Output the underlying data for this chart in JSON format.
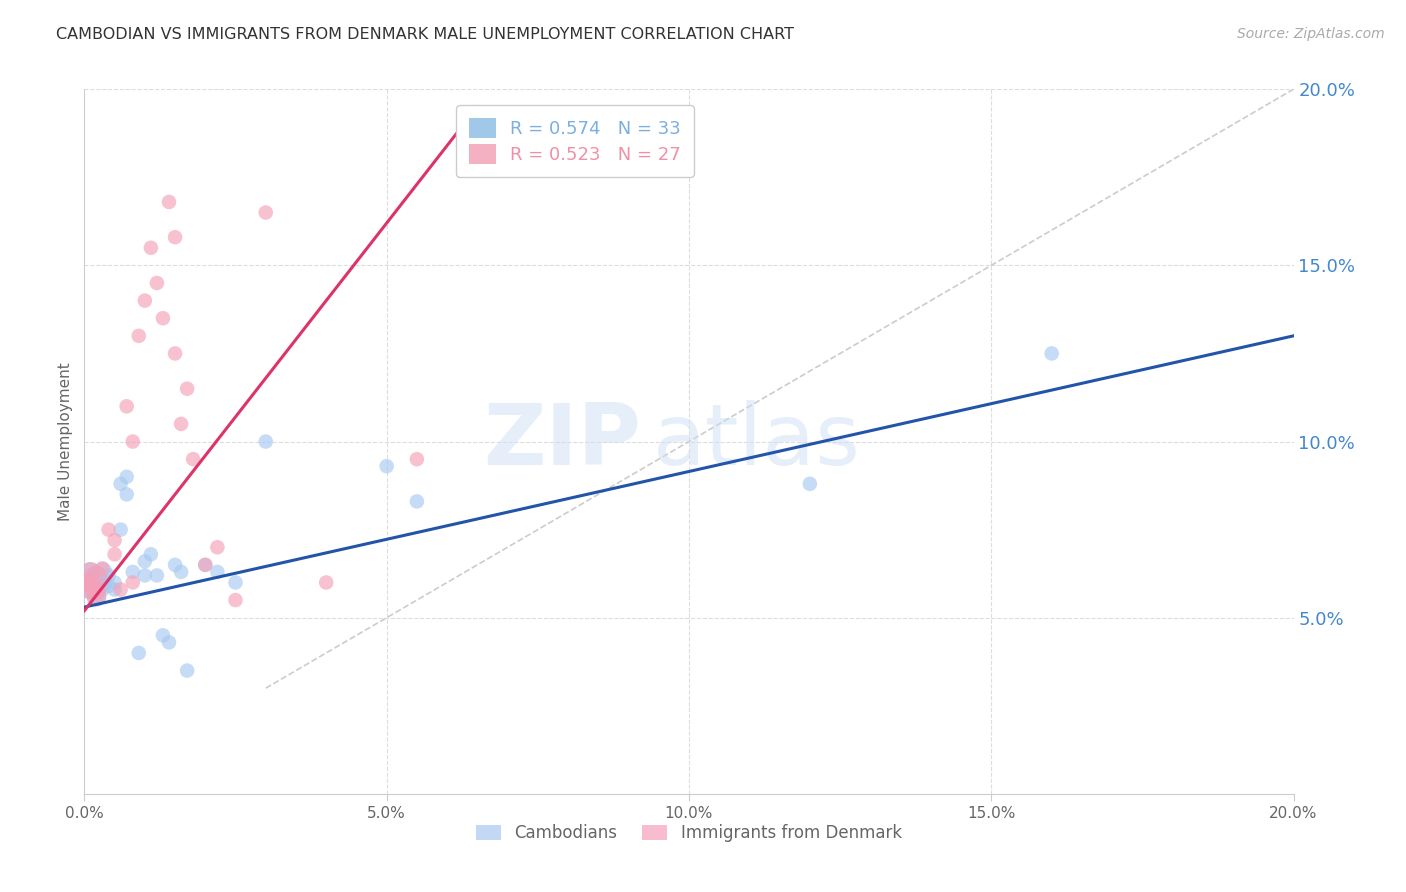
{
  "title": "CAMBODIAN VS IMMIGRANTS FROM DENMARK MALE UNEMPLOYMENT CORRELATION CHART",
  "source": "Source: ZipAtlas.com",
  "ylabel": "Male Unemployment",
  "xlim": [
    0.0,
    0.2
  ],
  "ylim": [
    0.0,
    0.2
  ],
  "xtick_labels": [
    "0.0%",
    "",
    "5.0%",
    "",
    "10.0%",
    "",
    "15.0%",
    "",
    "20.0%"
  ],
  "xtick_vals": [
    0.0,
    0.025,
    0.05,
    0.075,
    0.1,
    0.125,
    0.15,
    0.175,
    0.2
  ],
  "xtick_display": [
    0.0,
    0.05,
    0.1,
    0.15,
    0.2
  ],
  "xtick_display_labels": [
    "0.0%",
    "5.0%",
    "10.0%",
    "15.0%",
    "20.0%"
  ],
  "ytick_vals": [
    0.05,
    0.1,
    0.15,
    0.2
  ],
  "ytick_labels": [
    "5.0%",
    "10.0%",
    "15.0%",
    "20.0%"
  ],
  "grid_color": "#dddddd",
  "watermark_zip": "ZIP",
  "watermark_atlas": "atlas",
  "legend_entries": [
    {
      "label_r": "R = 0.574",
      "label_n": "N = 33",
      "color": "#7ab0e0"
    },
    {
      "label_r": "R = 0.523",
      "label_n": "N = 27",
      "color": "#f090a8"
    }
  ],
  "cambodian_scatter": {
    "x": [
      0.001,
      0.001,
      0.002,
      0.002,
      0.003,
      0.003,
      0.004,
      0.004,
      0.005,
      0.005,
      0.006,
      0.006,
      0.007,
      0.007,
      0.008,
      0.009,
      0.01,
      0.01,
      0.011,
      0.012,
      0.013,
      0.014,
      0.015,
      0.016,
      0.017,
      0.02,
      0.022,
      0.025,
      0.03,
      0.05,
      0.055,
      0.12,
      0.16
    ],
    "y": [
      0.062,
      0.058,
      0.06,
      0.056,
      0.058,
      0.06,
      0.062,
      0.059,
      0.06,
      0.058,
      0.088,
      0.075,
      0.09,
      0.085,
      0.063,
      0.04,
      0.062,
      0.066,
      0.068,
      0.062,
      0.045,
      0.043,
      0.065,
      0.063,
      0.035,
      0.065,
      0.063,
      0.06,
      0.1,
      0.093,
      0.083,
      0.088,
      0.125
    ],
    "color": "#a8c8f0",
    "alpha": 0.65,
    "size": 110
  },
  "denmark_scatter": {
    "x": [
      0.001,
      0.002,
      0.003,
      0.004,
      0.005,
      0.005,
      0.006,
      0.007,
      0.008,
      0.008,
      0.009,
      0.01,
      0.011,
      0.012,
      0.013,
      0.014,
      0.015,
      0.015,
      0.016,
      0.017,
      0.018,
      0.02,
      0.022,
      0.025,
      0.03,
      0.04,
      0.055
    ],
    "y": [
      0.06,
      0.058,
      0.064,
      0.075,
      0.068,
      0.072,
      0.058,
      0.11,
      0.06,
      0.1,
      0.13,
      0.14,
      0.155,
      0.145,
      0.135,
      0.168,
      0.158,
      0.125,
      0.105,
      0.115,
      0.095,
      0.065,
      0.07,
      0.055,
      0.165,
      0.06,
      0.095
    ],
    "color": "#f5a0b8",
    "alpha": 0.65,
    "size": 110
  },
  "cambodian_big_cluster": {
    "x": [
      0.0005,
      0.001,
      0.001,
      0.002,
      0.002,
      0.002,
      0.002,
      0.003,
      0.003
    ],
    "y": [
      0.06,
      0.058,
      0.063,
      0.06,
      0.062,
      0.056,
      0.058,
      0.06,
      0.063
    ],
    "color": "#a8c8f0",
    "alpha": 0.65,
    "size": 200
  },
  "denmark_big_cluster": {
    "x": [
      0.0005,
      0.001,
      0.001,
      0.002,
      0.002,
      0.002
    ],
    "y": [
      0.06,
      0.063,
      0.058,
      0.058,
      0.062,
      0.056
    ],
    "color": "#f5a0b8",
    "alpha": 0.65,
    "size": 200
  },
  "blue_line": {
    "x0": 0.0,
    "y0": 0.053,
    "x1": 0.2,
    "y1": 0.13,
    "color": "#2255aa",
    "linewidth": 2.2
  },
  "pink_line": {
    "x0": 0.0,
    "y0": 0.052,
    "x1": 0.065,
    "y1": 0.195,
    "color": "#dd3366",
    "linewidth": 2.2
  },
  "diag_line": {
    "x0": 0.03,
    "y0": 0.03,
    "x1": 0.2,
    "y1": 0.2,
    "color": "#cccccc",
    "linestyle": "--",
    "linewidth": 1.2
  },
  "background_color": "#ffffff",
  "title_color": "#333333",
  "title_fontsize": 11.5,
  "axis_label_color": "#666666",
  "right_axis_color": "#4488cc",
  "source_color": "#aaaaaa"
}
